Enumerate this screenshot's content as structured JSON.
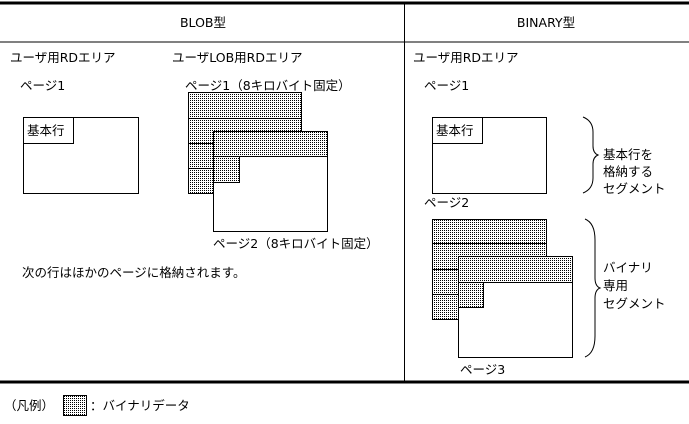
{
  "header": {
    "blob": "BLOB型",
    "binary": "BINARY型"
  },
  "blob": {
    "user_area": "ユーザ用RDエリア",
    "lob_area": "ユーザLOB用RDエリア",
    "page1": "ページ1",
    "base_row": "基本行",
    "lob_page1": "ページ1（8キロバイト固定）",
    "lob_page2": "ページ2（8キロバイト固定）",
    "note": "次の行はほかのページに格納されます。"
  },
  "binary": {
    "user_area": "ユーザ用RDエリア",
    "page1": "ページ1",
    "base_row": "基本行",
    "page2": "ページ2",
    "page3": "ページ3",
    "segment1": [
      "基本行を",
      "格納する",
      "セグメント"
    ],
    "segment2": [
      "バイナリ",
      "専用",
      "セグメント"
    ]
  },
  "legend": {
    "prefix": "（凡例）",
    "label": "：バイナリデータ"
  },
  "colors": {
    "line": "#000000",
    "dots": "#000000"
  }
}
